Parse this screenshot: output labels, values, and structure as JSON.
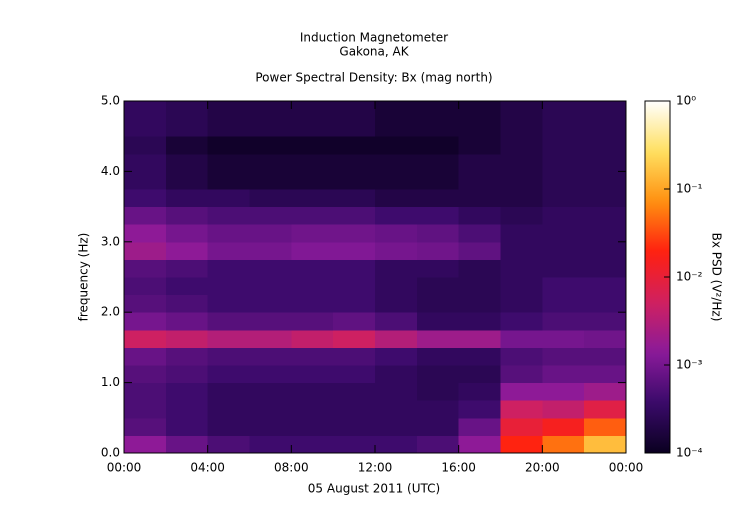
{
  "chart_data": {
    "type": "heatmap",
    "title": "Induction Magnetometer",
    "subtitle": "Gakona, AK",
    "plot_title": "Power Spectral Density: Bx (mag north)",
    "xlabel": "05 August 2011 (UTC)",
    "ylabel": "frequency (Hz)",
    "colorbar_label": "Bx PSD (V²/Hz)",
    "xlim": [
      0,
      24
    ],
    "xticks": [
      {
        "value": 0,
        "label": "00:00"
      },
      {
        "value": 4,
        "label": "04:00"
      },
      {
        "value": 8,
        "label": "08:00"
      },
      {
        "value": 12,
        "label": "12:00"
      },
      {
        "value": 16,
        "label": "16:00"
      },
      {
        "value": 20,
        "label": "20:00"
      },
      {
        "value": 24,
        "label": "00:00"
      }
    ],
    "ylim": [
      0,
      5
    ],
    "yticks": [
      {
        "value": 0,
        "label": "0.0"
      },
      {
        "value": 1,
        "label": "1.0"
      },
      {
        "value": 2,
        "label": "2.0"
      },
      {
        "value": 3,
        "label": "3.0"
      },
      {
        "value": 4,
        "label": "4.0"
      },
      {
        "value": 5,
        "label": "5.0"
      }
    ],
    "xbins": [
      0,
      2,
      4,
      6,
      8,
      10,
      12,
      14,
      16,
      18,
      20,
      22,
      24
    ],
    "ybins": [
      0,
      0.25,
      0.5,
      0.75,
      1,
      1.25,
      1.5,
      1.75,
      2,
      2.25,
      2.5,
      2.75,
      3,
      3.25,
      3.5,
      3.75,
      4,
      4.25,
      4.5,
      4.75,
      5
    ],
    "z": [
      [
        0.0015,
        0.0008,
        0.0005,
        0.0004,
        0.0004,
        0.0004,
        0.0004,
        0.0005,
        0.0015,
        0.02,
        0.05,
        0.15
      ],
      [
        0.0006,
        0.0004,
        0.0003,
        0.0003,
        0.0003,
        0.0003,
        0.0003,
        0.0003,
        0.0008,
        0.01,
        0.015,
        0.04
      ],
      [
        0.0005,
        0.0004,
        0.0003,
        0.0003,
        0.0003,
        0.0003,
        0.0003,
        0.0003,
        0.0004,
        0.005,
        0.004,
        0.008
      ],
      [
        0.0005,
        0.0004,
        0.0003,
        0.0003,
        0.0003,
        0.0003,
        0.0003,
        0.00025,
        0.0003,
        0.0015,
        0.0015,
        0.002
      ],
      [
        0.0006,
        0.0005,
        0.0004,
        0.0004,
        0.0004,
        0.0004,
        0.0003,
        0.00025,
        0.00025,
        0.0006,
        0.0008,
        0.0008
      ],
      [
        0.0008,
        0.0006,
        0.0005,
        0.0005,
        0.0005,
        0.0005,
        0.0004,
        0.0003,
        0.0003,
        0.0005,
        0.0006,
        0.0006
      ],
      [
        0.005,
        0.004,
        0.003,
        0.003,
        0.004,
        0.005,
        0.003,
        0.002,
        0.002,
        0.001,
        0.001,
        0.0009
      ],
      [
        0.001,
        0.0008,
        0.0006,
        0.0006,
        0.0006,
        0.0007,
        0.0005,
        0.0003,
        0.0003,
        0.0004,
        0.0005,
        0.0005
      ],
      [
        0.0006,
        0.0005,
        0.0004,
        0.0004,
        0.0004,
        0.0004,
        0.0003,
        0.00025,
        0.00025,
        0.0003,
        0.0004,
        0.0004
      ],
      [
        0.0005,
        0.0004,
        0.0004,
        0.0004,
        0.0004,
        0.0004,
        0.0003,
        0.00025,
        0.00025,
        0.0003,
        0.0004,
        0.0004
      ],
      [
        0.0006,
        0.0005,
        0.0004,
        0.0004,
        0.0004,
        0.0004,
        0.0003,
        0.0003,
        0.00025,
        0.0003,
        0.0003,
        0.0003
      ],
      [
        0.002,
        0.0015,
        0.001,
        0.001,
        0.0012,
        0.0012,
        0.001,
        0.0009,
        0.0007,
        0.0003,
        0.0003,
        0.0003
      ],
      [
        0.0015,
        0.001,
        0.0008,
        0.0008,
        0.0009,
        0.0009,
        0.0008,
        0.0007,
        0.0005,
        0.0003,
        0.0003,
        0.0003
      ],
      [
        0.0008,
        0.0006,
        0.0005,
        0.0005,
        0.0005,
        0.0005,
        0.0004,
        0.0004,
        0.0003,
        0.00025,
        0.0003,
        0.0003
      ],
      [
        0.0004,
        0.0003,
        0.0003,
        0.00025,
        0.00025,
        0.00025,
        0.0002,
        0.0002,
        0.0002,
        0.0002,
        0.00025,
        0.00025
      ],
      [
        0.0003,
        0.0002,
        0.00015,
        0.00015,
        0.00015,
        0.00015,
        0.00015,
        0.00015,
        0.0002,
        0.0002,
        0.00025,
        0.00025
      ],
      [
        0.0003,
        0.0002,
        0.00015,
        0.00015,
        0.00015,
        0.00015,
        0.00015,
        0.00015,
        0.0002,
        0.0002,
        0.00025,
        0.00025
      ],
      [
        0.00025,
        0.00015,
        0.00012,
        0.00012,
        0.00012,
        0.00012,
        0.00012,
        0.00012,
        0.00015,
        0.0002,
        0.00025,
        0.00025
      ],
      [
        0.0003,
        0.00025,
        0.0002,
        0.0002,
        0.0002,
        0.0002,
        0.00015,
        0.00015,
        0.00015,
        0.0002,
        0.00025,
        0.00025
      ],
      [
        0.0003,
        0.00025,
        0.0002,
        0.0002,
        0.0002,
        0.0002,
        0.00015,
        0.00015,
        0.00015,
        0.0002,
        0.00025,
        0.00025
      ]
    ],
    "clim": [
      0.0001,
      1
    ],
    "clog": true,
    "cticks": [
      {
        "value": 1,
        "label": "10⁰"
      },
      {
        "value": 0.1,
        "label": "10⁻¹"
      },
      {
        "value": 0.01,
        "label": "10⁻²"
      },
      {
        "value": 0.001,
        "label": "10⁻³"
      },
      {
        "value": 0.0001,
        "label": "10⁻⁴"
      }
    ],
    "colormap": [
      "#0a0020",
      "#3a0a6a",
      "#8a1a9a",
      "#d02060",
      "#ff2010",
      "#ff9010",
      "#ffe060",
      "#ffffff"
    ]
  }
}
